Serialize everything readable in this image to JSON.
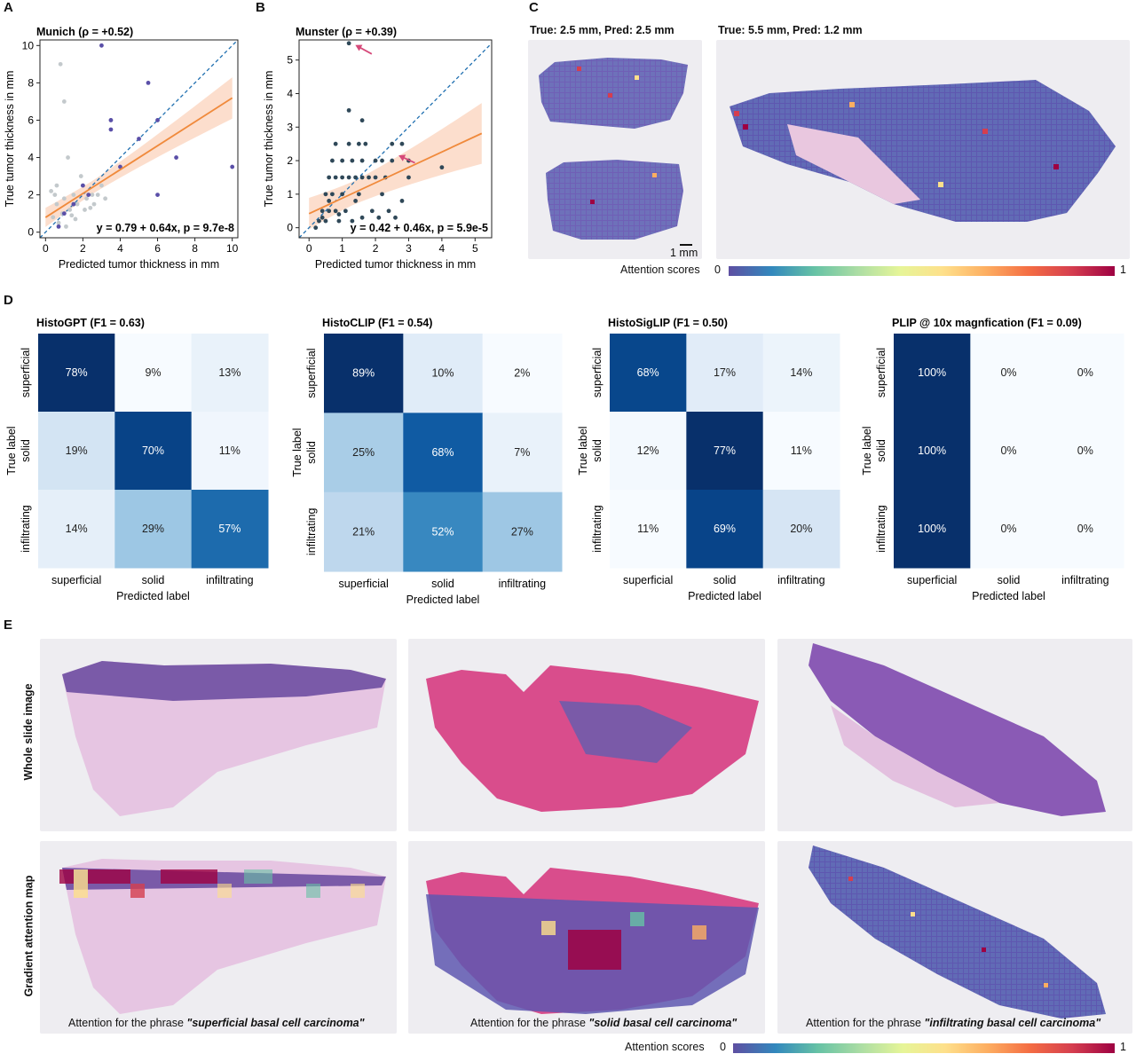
{
  "panels": {
    "A": {
      "letter": "A"
    },
    "B": {
      "letter": "B"
    },
    "C": {
      "letter": "C"
    },
    "D": {
      "letter": "D"
    },
    "E": {
      "letter": "E"
    }
  },
  "panel_c": {
    "left_title": "True: 2.5 mm, Pred: 2.5 mm",
    "right_title": "True: 5.5 mm, Pred: 1.2 mm",
    "scale_label": "1 mm",
    "colorbar_label": "Attention scores",
    "colorbar_min": "0",
    "colorbar_max": "1"
  },
  "panel_e": {
    "row1_label": "Whole slide image",
    "row2_label": "Gradient attention map",
    "captions": [
      {
        "prefix": "Attention for the phrase ",
        "phrase": "\"superficial basal cell carcinoma\""
      },
      {
        "prefix": "Attention for the phrase ",
        "phrase": "\"solid basal cell carcinoma\""
      },
      {
        "prefix": "Attention for the phrase ",
        "phrase": "\"infiltrating basal cell carcinoma\""
      }
    ],
    "colorbar_label": "Attention scores",
    "colorbar_min": "0",
    "colorbar_max": "1"
  },
  "colors": {
    "scatter_light": "#c3c9cc",
    "scatter_purple": "#5a4fa8",
    "scatter_dark": "#2f4858",
    "fit_line": "#f08a3c",
    "ci_band": "#fbd8c4",
    "identity": "#1f6fb0",
    "arrow": "#d64a7a"
  },
  "chart_data": [
    {
      "type": "scatter",
      "title": "Munich (ρ = +0.52)",
      "xlabel": "Predicted tumor thickness in mm",
      "ylabel": "True tumor thickness in mm",
      "xlim": [
        -0.3,
        10.3
      ],
      "ylim": [
        -0.3,
        10.3
      ],
      "xticks": [
        0,
        2,
        4,
        6,
        8,
        10
      ],
      "yticks": [
        0,
        2,
        4,
        6,
        8,
        10
      ],
      "annotation": "y = 0.79 + 0.64x, p = 9.7e-8",
      "fit": {
        "intercept": 0.79,
        "slope": 0.64
      },
      "series": [
        {
          "color_key": "scatter_light",
          "points": [
            [
              0.8,
              9
            ],
            [
              1,
              7
            ],
            [
              1.2,
              4
            ],
            [
              0.5,
              2
            ],
            [
              0.6,
              1.5
            ],
            [
              0.9,
              1
            ],
            [
              1,
              1.8
            ],
            [
              1.3,
              1.2
            ],
            [
              1.5,
              2
            ],
            [
              1.7,
              1.5
            ],
            [
              2,
              2.5
            ],
            [
              2.2,
              1.8
            ],
            [
              2.5,
              2
            ],
            [
              0.4,
              0.8
            ],
            [
              0.7,
              0.5
            ],
            [
              1.1,
              0.3
            ],
            [
              1.6,
              0.7
            ],
            [
              2.1,
              1.2
            ],
            [
              2.6,
              1.5
            ],
            [
              3,
              2.5
            ],
            [
              3.5,
              6
            ],
            [
              3.2,
              1.8
            ],
            [
              0.3,
              2.2
            ],
            [
              1.9,
              3
            ],
            [
              2.8,
              2
            ],
            [
              1.4,
              0.9
            ],
            [
              0.6,
              2.5
            ],
            [
              2.4,
              1.3
            ]
          ]
        },
        {
          "color_key": "scatter_purple",
          "points": [
            [
              3,
              10
            ],
            [
              5.5,
              8
            ],
            [
              6,
              6
            ],
            [
              3.5,
              5.5
            ],
            [
              3.5,
              6
            ],
            [
              5,
              5
            ],
            [
              4,
              3.5
            ],
            [
              7,
              4
            ],
            [
              2,
              2.5
            ],
            [
              1.5,
              1.5
            ],
            [
              10,
              3.5
            ],
            [
              6,
              2
            ],
            [
              1,
              1
            ],
            [
              0.7,
              0.3
            ],
            [
              2.3,
              2
            ]
          ]
        }
      ]
    },
    {
      "type": "scatter",
      "title": "Munster (ρ = +0.39)",
      "xlabel": "Predicted tumor thickness in mm",
      "ylabel": "True tumor thickness in mm",
      "xlim": [
        -0.3,
        5.5
      ],
      "ylim": [
        -0.3,
        5.6
      ],
      "xticks": [
        0,
        1,
        2,
        3,
        4,
        5
      ],
      "yticks": [
        0,
        1,
        2,
        3,
        4,
        5
      ],
      "annotation": "y = 0.42 + 0.46x, p = 5.9e-5",
      "fit": {
        "intercept": 0.42,
        "slope": 0.46
      },
      "series": [
        {
          "color_key": "scatter_dark",
          "points": [
            [
              1.2,
              5.5
            ],
            [
              1.2,
              3.5
            ],
            [
              1.6,
              3.2
            ],
            [
              0.8,
              2.5
            ],
            [
              1.2,
              2.5
            ],
            [
              1.5,
              2.5
            ],
            [
              1.7,
              2.5
            ],
            [
              2.5,
              2.5
            ],
            [
              2.8,
              2.5
            ],
            [
              0.7,
              2
            ],
            [
              1,
              2
            ],
            [
              1.3,
              2
            ],
            [
              1.6,
              2
            ],
            [
              2,
              2
            ],
            [
              2.2,
              2
            ],
            [
              3,
              2
            ],
            [
              2.5,
              2
            ],
            [
              4,
              1.8
            ],
            [
              0.6,
              1.5
            ],
            [
              0.8,
              1.5
            ],
            [
              1,
              1.5
            ],
            [
              1.2,
              1.5
            ],
            [
              1.4,
              1.5
            ],
            [
              1.6,
              1.5
            ],
            [
              1.8,
              1.5
            ],
            [
              2,
              1.5
            ],
            [
              2.3,
              1.5
            ],
            [
              3,
              1.5
            ],
            [
              0.5,
              1
            ],
            [
              0.7,
              1
            ],
            [
              1,
              1
            ],
            [
              1.5,
              1
            ],
            [
              2.2,
              1
            ],
            [
              0.4,
              0.5
            ],
            [
              0.6,
              0.5
            ],
            [
              0.8,
              0.5
            ],
            [
              1.1,
              0.5
            ],
            [
              1.9,
              0.5
            ],
            [
              2.4,
              0.5
            ],
            [
              0.3,
              0.2
            ],
            [
              0.5,
              0.2
            ],
            [
              0.9,
              0.2
            ],
            [
              1.3,
              0.2
            ],
            [
              0.2,
              0
            ],
            [
              0.4,
              0.3
            ],
            [
              1.6,
              0.3
            ],
            [
              2.1,
              0.3
            ],
            [
              2.8,
              0.8
            ],
            [
              0.6,
              0.8
            ],
            [
              1.4,
              0.8
            ],
            [
              0.9,
              0.4
            ],
            [
              2.6,
              0.3
            ]
          ]
        }
      ]
    },
    {
      "type": "heatmap",
      "title": "HistoGPT (F1 = 0.63)",
      "xlabel": "Predicted label",
      "ylabel": "True label",
      "categories": [
        "superficial",
        "solid",
        "infiltrating"
      ],
      "values": [
        [
          78,
          9,
          13
        ],
        [
          19,
          70,
          11
        ],
        [
          14,
          29,
          57
        ]
      ],
      "cell_text": [
        [
          "78%",
          "9%",
          "13%"
        ],
        [
          "19%",
          "70%",
          "11%"
        ],
        [
          "14%",
          "29%",
          "57%"
        ]
      ]
    },
    {
      "type": "heatmap",
      "title": "HistoCLIP (F1 = 0.54)",
      "xlabel": "Predicted label",
      "ylabel": "True label",
      "categories": [
        "superficial",
        "solid",
        "infiltrating"
      ],
      "values": [
        [
          89,
          10,
          2
        ],
        [
          25,
          68,
          7
        ],
        [
          21,
          52,
          27
        ]
      ],
      "cell_text": [
        [
          "89%",
          "10%",
          "2%"
        ],
        [
          "25%",
          "68%",
          "7%"
        ],
        [
          "21%",
          "52%",
          "27%"
        ]
      ]
    },
    {
      "type": "heatmap",
      "title": "HistoSigLIP (F1 = 0.50)",
      "xlabel": "Predicted label",
      "ylabel": "True label",
      "categories": [
        "superficial",
        "solid",
        "infiltrating"
      ],
      "values": [
        [
          68,
          17,
          14
        ],
        [
          12,
          77,
          11
        ],
        [
          11,
          69,
          20
        ]
      ],
      "cell_text": [
        [
          "68%",
          "17%",
          "14%"
        ],
        [
          "12%",
          "77%",
          "11%"
        ],
        [
          "11%",
          "69%",
          "20%"
        ]
      ]
    },
    {
      "type": "heatmap",
      "title": "PLIP @ 10x magnfication (F1 = 0.09)",
      "xlabel": "Predicted label",
      "ylabel": "True label",
      "categories": [
        "superficial",
        "solid",
        "infiltrating"
      ],
      "values": [
        [
          100,
          0,
          0
        ],
        [
          100,
          0,
          0
        ],
        [
          100,
          0,
          0
        ]
      ],
      "cell_text": [
        [
          "100%",
          "0%",
          "0%"
        ],
        [
          "100%",
          "0%",
          "0%"
        ],
        [
          "100%",
          "0%",
          "0%"
        ]
      ]
    }
  ]
}
